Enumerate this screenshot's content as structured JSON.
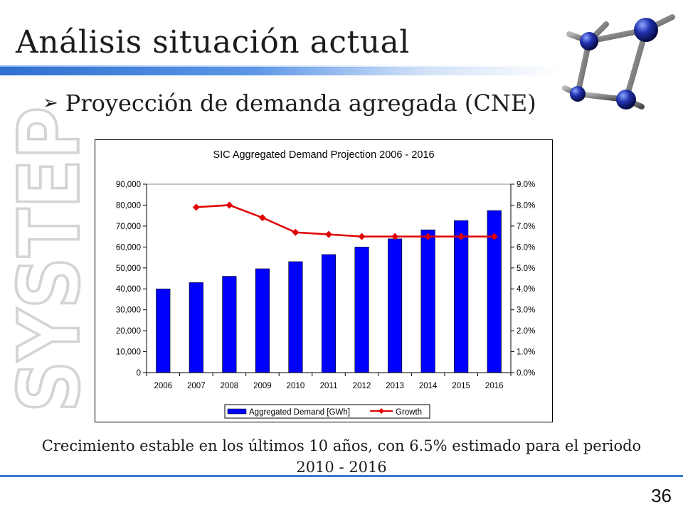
{
  "slide": {
    "title": "Análisis situación actual",
    "bullet": "Proyección de demanda agregada (CNE)",
    "caption": "Crecimiento estable en los últimos 10 años, con 6.5% estimado para el periodo 2010 - 2016",
    "page_number": "36",
    "watermark_text": "SYSTEP",
    "bullet_icon": "arrowhead-right-icon",
    "logo_icon": "molecule-icon"
  },
  "chart_data": {
    "type": "bar",
    "title": "SIC Aggregated Demand Projection 2006 - 2016",
    "categories": [
      "2006",
      "2007",
      "2008",
      "2009",
      "2010",
      "2011",
      "2012",
      "2013",
      "2014",
      "2015",
      "2016"
    ],
    "series": [
      {
        "name": "Aggregated Demand [GWh]",
        "type": "bar",
        "axis": "left",
        "color": "#0000ff",
        "values": [
          40000,
          43000,
          46000,
          49600,
          53000,
          56400,
          60000,
          63900,
          68200,
          72600,
          77400
        ]
      },
      {
        "name": "Growth",
        "type": "line",
        "axis": "right",
        "color": "#e00000",
        "values": [
          null,
          0.079,
          0.08,
          0.074,
          0.067,
          0.066,
          0.065,
          0.065,
          0.065,
          0.065,
          0.065
        ]
      }
    ],
    "y_left": {
      "min": 0,
      "max": 90000,
      "step": 10000,
      "tick_labels": [
        "0",
        "10,000",
        "20,000",
        "30,000",
        "40,000",
        "50,000",
        "60,000",
        "70,000",
        "80,000",
        "90,000"
      ]
    },
    "y_right": {
      "min": 0,
      "max": 0.09,
      "step": 0.01,
      "tick_labels": [
        "0.0%",
        "1.0%",
        "2.0%",
        "3.0%",
        "4.0%",
        "5.0%",
        "6.0%",
        "7.0%",
        "8.0%",
        "9.0%"
      ]
    },
    "grid": false,
    "legend_position": "bottom"
  }
}
